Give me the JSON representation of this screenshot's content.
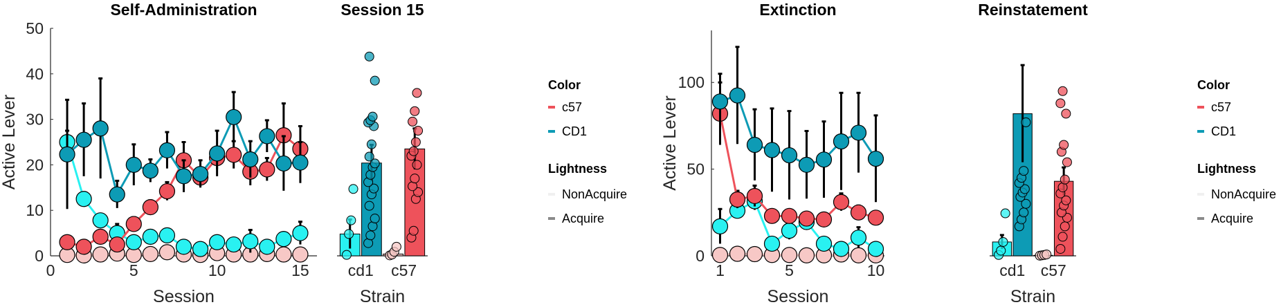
{
  "colors": {
    "c57_acquire": "#ee525b",
    "c57_nonacquire": "#f7c8c6",
    "cd1_acquire": "#0d9bb5",
    "cd1_nonacquire": "#29f1f1",
    "legend_nonacquire": "#f0f0f0",
    "legend_acquire": "#8a8a8a"
  },
  "chart_data": [
    {
      "id": "self-admin",
      "type": "line",
      "title": "Self-Administration",
      "xlabel": "Session",
      "ylabel": "Active Lever",
      "xlim": [
        0,
        16
      ],
      "ylim": [
        0,
        50
      ],
      "xticks": [
        0,
        5,
        10,
        15
      ],
      "yticks": [
        0,
        10,
        20,
        30,
        40,
        50
      ],
      "grid": false,
      "series": [
        {
          "name": "c57 NonAcquire",
          "color_key": "c57_nonacquire",
          "x": [
            1,
            2,
            3,
            4,
            5,
            6,
            7,
            8,
            9,
            10,
            11,
            12,
            13,
            14,
            15
          ],
          "y": [
            0.2,
            0.1,
            0.3,
            0.5,
            0.2,
            0.4,
            0.8,
            0.3,
            0.2,
            0.6,
            0.3,
            0.3,
            0.4,
            0.3,
            0.3
          ],
          "err": [
            0.3,
            0.3,
            0.4,
            0.8,
            0.3,
            0.5,
            1.0,
            0.4,
            0.3,
            0.8,
            0.4,
            0.4,
            0.5,
            0.4,
            0.4
          ]
        },
        {
          "name": "CD1 NonAcquire",
          "color_key": "cd1_nonacquire",
          "x": [
            1,
            2,
            3,
            4,
            5,
            6,
            7,
            8,
            9,
            10,
            11,
            12,
            13,
            14,
            15
          ],
          "y": [
            25.0,
            12.5,
            7.8,
            5.0,
            3.0,
            4.2,
            4.5,
            2.0,
            1.5,
            3.0,
            2.5,
            3.2,
            2.0,
            3.7,
            5.0
          ],
          "err": [
            2.5,
            1.5,
            1.0,
            2.0,
            1.0,
            1.5,
            1.5,
            0.8,
            0.6,
            1.0,
            0.8,
            2.5,
            0.8,
            1.0,
            2.5
          ]
        },
        {
          "name": "c57 Acquire",
          "color_key": "c57_acquire",
          "x": [
            1,
            2,
            3,
            4,
            5,
            6,
            7,
            8,
            9,
            10,
            11,
            12,
            13,
            14,
            15
          ],
          "y": [
            3.0,
            2.0,
            4.2,
            2.5,
            7.0,
            10.7,
            14.2,
            21.0,
            17.2,
            21.5,
            22.2,
            18.5,
            19.0,
            26.5,
            23.5
          ],
          "err": [
            0.8,
            0.8,
            1.5,
            1.2,
            1.5,
            1.5,
            2.0,
            4.0,
            2.0,
            2.5,
            3.0,
            3.0,
            2.5,
            7.0,
            5.0
          ]
        },
        {
          "name": "CD1 Acquire",
          "color_key": "cd1_acquire",
          "x": [
            1,
            2,
            3,
            4,
            5,
            6,
            7,
            8,
            9,
            10,
            11,
            12,
            13,
            14,
            15
          ],
          "y": [
            22.3,
            25.5,
            28.0,
            13.5,
            20.0,
            18.7,
            23.2,
            17.5,
            18.0,
            22.5,
            30.5,
            21.2,
            26.3,
            20.3,
            20.5
          ],
          "err": [
            12.0,
            8.0,
            11.0,
            3.0,
            4.5,
            2.5,
            4.0,
            3.5,
            3.0,
            5.0,
            5.5,
            4.0,
            3.5,
            6.0,
            4.5
          ]
        }
      ]
    },
    {
      "id": "session15",
      "type": "bar",
      "title": "Session 15",
      "xlabel": "Strain",
      "ylabel": "",
      "ylim": [
        0,
        50
      ],
      "categories": [
        "cd1",
        "c57"
      ],
      "bars": [
        {
          "group": "cd1",
          "pos": 0.75,
          "color_key": "cd1_nonacquire",
          "value": 4.8,
          "err": 3.2,
          "points": [
            0.2,
            4.8,
            7.8,
            14.7
          ]
        },
        {
          "group": "cd1",
          "pos": 1.25,
          "color_key": "cd1_acquire",
          "value": 20.4,
          "err": 4.0,
          "points": [
            2.8,
            4.5,
            6.5,
            8.2,
            11.0,
            13.5,
            14.8,
            16.2,
            17.8,
            19.5,
            20.3,
            21.8,
            24.5,
            28.5,
            29.3,
            29.8,
            30.6,
            38.5,
            43.8
          ]
        },
        {
          "group": "c57",
          "pos": 1.75,
          "color_key": "c57_nonacquire",
          "value": 0.4,
          "err": 0.4,
          "points": [
            0.1,
            0.3,
            0.9,
            2.0
          ]
        },
        {
          "group": "c57",
          "pos": 2.25,
          "color_key": "c57_acquire",
          "value": 23.5,
          "err": 4.5,
          "points": [
            4.0,
            5.5,
            12.5,
            14.0,
            15.3,
            17.0,
            20.0,
            22.0,
            23.0,
            25.0,
            27.5,
            29.5,
            31.8,
            35.8
          ]
        }
      ]
    },
    {
      "id": "extinction",
      "type": "line",
      "title": "Extinction",
      "xlabel": "Session",
      "ylabel": "Active Lever",
      "xlim": [
        0.5,
        10.5
      ],
      "ylim": [
        0,
        130
      ],
      "xticks": [
        1,
        5,
        10
      ],
      "yticks": [
        0,
        50,
        100
      ],
      "grid": false,
      "series": [
        {
          "name": "c57 NonAcquire",
          "color_key": "c57_nonacquire",
          "x": [
            1,
            2,
            3,
            4,
            5,
            6,
            7,
            8,
            9,
            10
          ],
          "y": [
            0.5,
            1.2,
            1.0,
            0.5,
            0.5,
            0.3,
            0.3,
            0.8,
            0.3,
            0.3
          ],
          "err": [
            0.5,
            1.0,
            1.0,
            0.5,
            0.5,
            0.3,
            0.3,
            0.8,
            0.3,
            0.3
          ]
        },
        {
          "name": "CD1 NonAcquire",
          "color_key": "cd1_nonacquire",
          "x": [
            1,
            2,
            3,
            4,
            5,
            6,
            7,
            8,
            9,
            10
          ],
          "y": [
            17.0,
            26.0,
            31.5,
            7.0,
            14.5,
            19.5,
            7.0,
            4.0,
            10.5,
            4.0
          ],
          "err": [
            10.0,
            3.0,
            5.0,
            2.0,
            5.0,
            3.0,
            2.0,
            2.0,
            6.0,
            2.0
          ]
        },
        {
          "name": "c57 Acquire",
          "color_key": "c57_acquire",
          "x": [
            1,
            2,
            3,
            4,
            5,
            6,
            7,
            8,
            9,
            10
          ],
          "y": [
            82.0,
            32.5,
            34.5,
            23.0,
            23.0,
            21.5,
            21.0,
            31.0,
            25.0,
            22.0
          ],
          "err": [
            18.0,
            5.0,
            6.0,
            2.0,
            2.0,
            2.0,
            3.0,
            5.0,
            4.0,
            3.0
          ]
        },
        {
          "name": "CD1 Acquire",
          "color_key": "cd1_acquire",
          "x": [
            1,
            2,
            3,
            4,
            5,
            6,
            7,
            8,
            9,
            10
          ],
          "y": [
            89.0,
            92.5,
            64.0,
            61.0,
            58.0,
            52.5,
            55.5,
            66.0,
            71.0,
            56.0
          ],
          "err": [
            16.0,
            28.0,
            20.5,
            24.0,
            25.5,
            19.5,
            22.0,
            28.0,
            23.0,
            25.0
          ]
        }
      ]
    },
    {
      "id": "reinstatement",
      "type": "bar",
      "title": "Reinstatement",
      "xlabel": "Strain",
      "ylabel": "",
      "ylim": [
        0,
        130
      ],
      "categories": [
        "cd1",
        "c57"
      ],
      "bars": [
        {
          "group": "cd1",
          "pos": 0.75,
          "color_key": "cd1_nonacquire",
          "value": 8.0,
          "err": 4.0,
          "points": [
            0.5,
            3.0,
            8.0,
            24.5
          ]
        },
        {
          "group": "cd1",
          "pos": 1.25,
          "color_key": "cd1_acquire",
          "value": 82.0,
          "err": 28.0,
          "points": [
            17.0,
            21.0,
            25.0,
            30.0,
            34.0,
            36.5,
            38.5,
            42.0,
            45.0,
            49.0,
            77.0
          ]
        },
        {
          "group": "c57",
          "pos": 1.75,
          "color_key": "c57_nonacquire",
          "value": 0.3,
          "err": 0.3,
          "points": [
            0.1,
            0.3,
            0.5,
            0.8
          ]
        },
        {
          "group": "c57",
          "pos": 2.25,
          "color_key": "c57_acquire",
          "value": 43.0,
          "err": 8.0,
          "points": [
            4.0,
            11.0,
            17.0,
            22.0,
            25.0,
            29.0,
            32.0,
            36.0,
            39.5,
            44.0,
            54.0,
            60.0,
            64.0,
            82.0,
            88.0,
            95.0
          ]
        }
      ]
    }
  ],
  "legend": {
    "color_title": "Color",
    "color_items": [
      {
        "label": "c57",
        "color_key": "c57_acquire"
      },
      {
        "label": "CD1",
        "color_key": "cd1_acquire"
      }
    ],
    "lightness_title": "Lightness",
    "lightness_items": [
      {
        "label": "NonAcquire",
        "color_key": "legend_nonacquire"
      },
      {
        "label": "Acquire",
        "color_key": "legend_acquire"
      }
    ]
  }
}
